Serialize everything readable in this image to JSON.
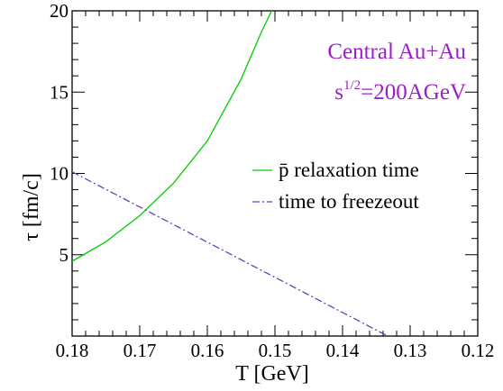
{
  "chart_data": {
    "type": "line",
    "xlabel": "T [GeV]",
    "ylabel": "τ  [fm/c]",
    "xlim": [
      0.18,
      0.12
    ],
    "ylim": [
      0,
      20
    ],
    "x_reversed": true,
    "xticks": [
      "0.18",
      "0.17",
      "0.16",
      "0.15",
      "0.14",
      "0.13",
      "0.12"
    ],
    "xtick_values": [
      0.18,
      0.17,
      0.16,
      0.15,
      0.14,
      0.13,
      0.12
    ],
    "yticks": [
      "5",
      "10",
      "15",
      "20"
    ],
    "ytick_values": [
      5,
      10,
      15,
      20
    ],
    "series": [
      {
        "name": "p̄ relaxation time",
        "color": "#00cc00",
        "style": "solid",
        "x": [
          0.18,
          0.175,
          0.17,
          0.165,
          0.16,
          0.155,
          0.152,
          0.1505
        ],
        "y": [
          4.6,
          5.8,
          7.4,
          9.4,
          12.0,
          15.8,
          18.7,
          20.0
        ]
      },
      {
        "name": "time to freezeout",
        "color": "#6a3cc0",
        "style": "dashdot",
        "x": [
          0.18,
          0.1333
        ],
        "y": [
          10.1,
          0.0
        ]
      }
    ],
    "annotations": [
      {
        "text": "Central Au+Au",
        "color": "#9b1fc9"
      },
      {
        "base": "s",
        "sup": "1/2",
        "rest": "=200AGeV",
        "color": "#9b1fc9"
      }
    ],
    "legend_position": "center-right",
    "grid": false
  }
}
